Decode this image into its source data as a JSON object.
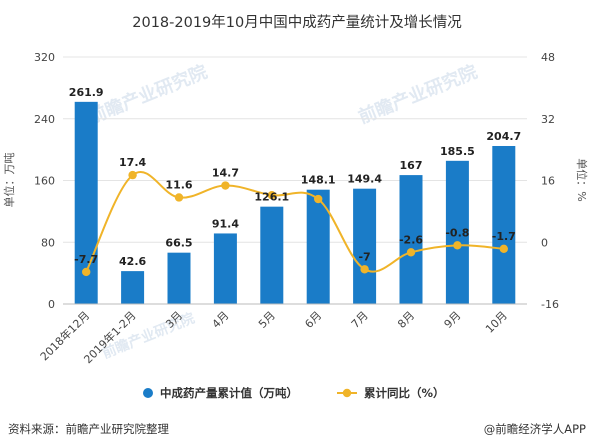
{
  "chart_data": {
    "type": "bar",
    "title": "2018-2019年10月中国中成药产量统计及增长情况",
    "categories": [
      "2018年12月",
      "2019年1-2月",
      "3月",
      "4月",
      "5月",
      "6月",
      "7月",
      "8月",
      "9月",
      "10月"
    ],
    "series": [
      {
        "name": "中成药产量累计值（万吨）",
        "type": "bar",
        "axis": "left",
        "values": [
          261.9,
          42.6,
          66.5,
          91.4,
          126.1,
          148.1,
          149.4,
          167,
          185.5,
          204.7
        ],
        "labels": [
          "261.9",
          "42.6",
          "66.5",
          "91.4",
          "126.1",
          "148.1",
          "149.4",
          "167",
          "185.5",
          "204.7"
        ],
        "color": "#1a7cc8"
      },
      {
        "name": "累计同比（%）",
        "type": "line",
        "axis": "right",
        "values": [
          -7.7,
          17.4,
          11.6,
          14.7,
          12.2,
          11.2,
          -7,
          -2.6,
          -0.8,
          -1.7
        ],
        "labels": [
          "-7.7",
          "17.4",
          "11.6",
          "14.7",
          "",
          "",
          "-7",
          "-2.6",
          "-0.8",
          "-1.7"
        ],
        "color": "#f0b429"
      }
    ],
    "ylabel": "单位：万吨",
    "ylabel_right": "单位：%",
    "ylim": [
      0,
      320
    ],
    "yticks": [
      "0",
      "80",
      "160",
      "240",
      "320"
    ],
    "ylim_right": [
      -16,
      48
    ],
    "yticks_right": [
      "-16",
      "0",
      "16",
      "32",
      "48"
    ],
    "grid": true,
    "legend_position": "bottom"
  },
  "watermark": "前瞻产业研究院",
  "footer": {
    "source": "资料来源：前瞻产业研究院整理",
    "brand": "@前瞻经济学人APP"
  },
  "colors": {
    "bar": "#1a7cc8",
    "line": "#f0b429"
  }
}
